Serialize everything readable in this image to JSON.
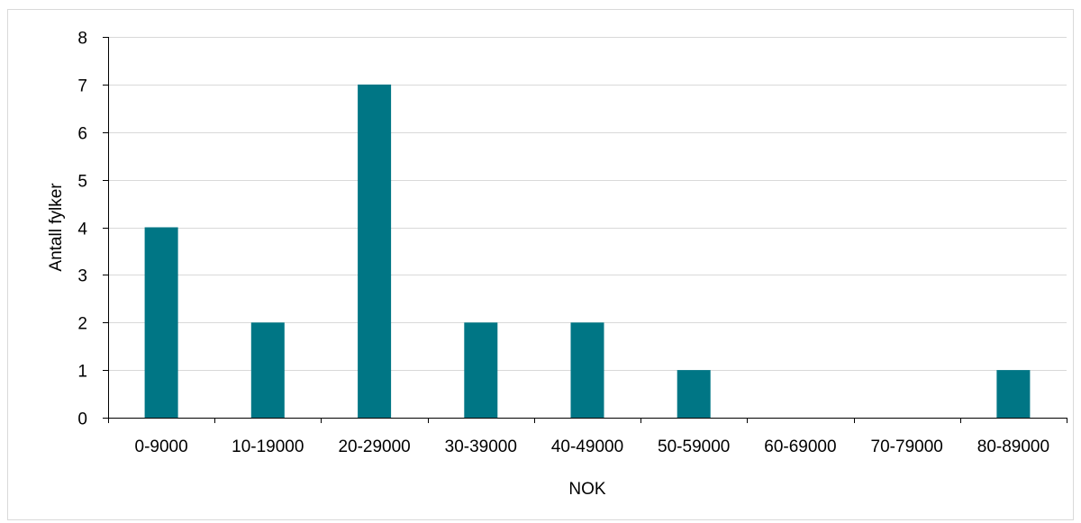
{
  "chart_data": {
    "type": "bar",
    "categories": [
      "0-9000",
      "10-19000",
      "20-29000",
      "30-39000",
      "40-49000",
      "50-59000",
      "60-69000",
      "70-79000",
      "80-89000"
    ],
    "values": [
      4,
      2,
      7,
      2,
      2,
      1,
      0,
      0,
      1
    ],
    "title": "",
    "xlabel": "NOK",
    "ylabel": "Antall fylker",
    "ylim": [
      0,
      8
    ],
    "yticks": [
      0,
      1,
      2,
      3,
      4,
      5,
      6,
      7,
      8
    ],
    "grid": true,
    "legend": "none",
    "colors": {
      "bar": "#007685",
      "grid": "#d9d9d9",
      "axis": "#000000"
    }
  }
}
